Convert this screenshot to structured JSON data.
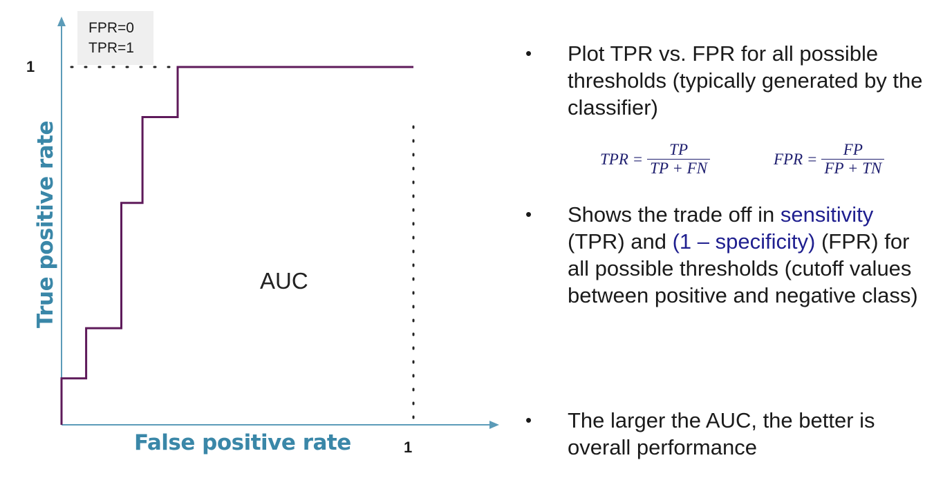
{
  "corner_label": {
    "line1": "FPR=0",
    "line2": "TPR=1"
  },
  "chart_data": {
    "type": "line",
    "step": true,
    "xlabel": "False positive rate",
    "ylabel": "True positive rate",
    "xlim": [
      0,
      1
    ],
    "ylim": [
      0,
      1
    ],
    "x_tick_label": "1",
    "y_tick_label": "1",
    "annotation": "AUC",
    "points": [
      [
        0,
        0
      ],
      [
        0,
        0.13
      ],
      [
        0.07,
        0.13
      ],
      [
        0.07,
        0.27
      ],
      [
        0.17,
        0.27
      ],
      [
        0.17,
        0.62
      ],
      [
        0.23,
        0.62
      ],
      [
        0.23,
        0.86
      ],
      [
        0.33,
        0.86
      ],
      [
        0.33,
        1
      ],
      [
        1,
        1
      ]
    ],
    "colors": {
      "curve": "#5e1a5a",
      "axis": "#5b9bb8",
      "label": "#3a87a8"
    }
  },
  "bullets": {
    "b1": "Plot TPR vs. FPR for all possible thresholds (typically generated by the classifier)",
    "b2_a": "Shows the trade off in ",
    "b2_sens": "sensitivity",
    "b2_b": " (TPR) and ",
    "b2_spec": "(1 – specificity)",
    "b2_c": " (FPR) for all possible thresholds (cutoff values between positive and negative class)",
    "b3": "The larger the AUC, the better is overall performance",
    "marker": "•"
  },
  "formulas": {
    "tpr": {
      "lhs": "TPR =",
      "num": "TP",
      "den": "TP + FN"
    },
    "fpr": {
      "lhs": "FPR =",
      "num": "FP",
      "den": "FP + TN"
    }
  }
}
